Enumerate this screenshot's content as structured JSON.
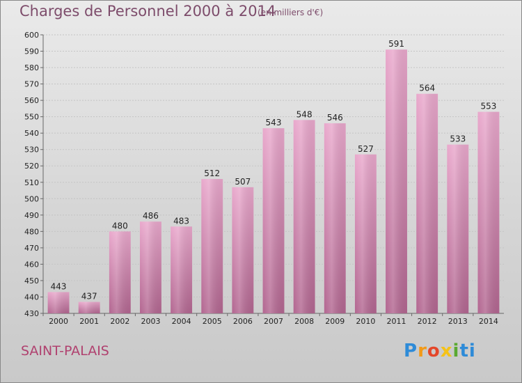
{
  "title": "Charges de Personnel 2000 à 2014",
  "subtitle": "(en milliers d'€)",
  "commune": "SAINT-PALAIS",
  "logo": {
    "text": "Proxiti",
    "letters": [
      "P",
      "r",
      "o",
      "x",
      "i",
      "ti"
    ]
  },
  "colors": {
    "bar_light": "#e9a8cc",
    "bar_dark": "#b26690",
    "title": "#7d4c6b",
    "commune": "#b0416f"
  },
  "chart_data": {
    "type": "bar",
    "title": "Charges de Personnel 2000 à 2014",
    "subtitle": "(en milliers d'€)",
    "categories": [
      "2000",
      "2001",
      "2002",
      "2003",
      "2004",
      "2005",
      "2006",
      "2007",
      "2008",
      "2009",
      "2010",
      "2011",
      "2012",
      "2013",
      "2014"
    ],
    "values": [
      443,
      437,
      480,
      486,
      483,
      512,
      507,
      543,
      548,
      546,
      527,
      591,
      564,
      533,
      553
    ],
    "ylim": [
      430,
      600
    ],
    "ytick_step": 10,
    "grid": true,
    "xlabel": "",
    "ylabel": ""
  }
}
